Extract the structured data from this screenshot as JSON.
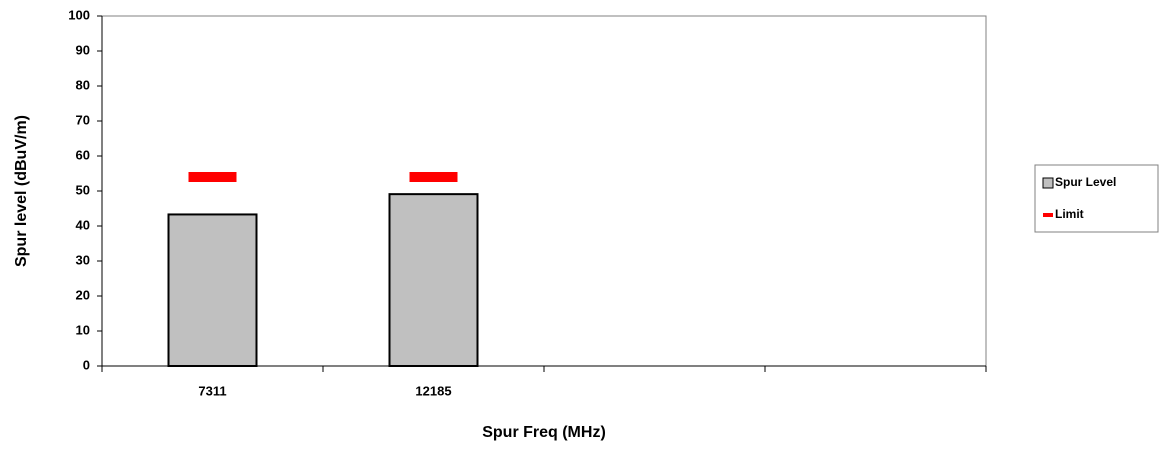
{
  "chart_data": {
    "type": "bar",
    "x_label": "Spur Freq (MHz)",
    "y_label": "Spur level (dBuV/m)",
    "categories": [
      "7311",
      "12185",
      null,
      null
    ],
    "series": [
      {
        "name": "Spur Level",
        "type": "bar",
        "color": "#c0c0c0",
        "values": [
          43.3,
          49.1,
          null,
          null
        ]
      },
      {
        "name": "Limit",
        "type": "scatter",
        "color": "#ff0000",
        "values": [
          54,
          54,
          null,
          null
        ]
      }
    ],
    "ylim": [
      0,
      100
    ],
    "yticks": [
      0,
      10,
      20,
      30,
      40,
      50,
      60,
      70,
      80,
      90,
      100
    ],
    "grid": false,
    "legend": "right"
  }
}
